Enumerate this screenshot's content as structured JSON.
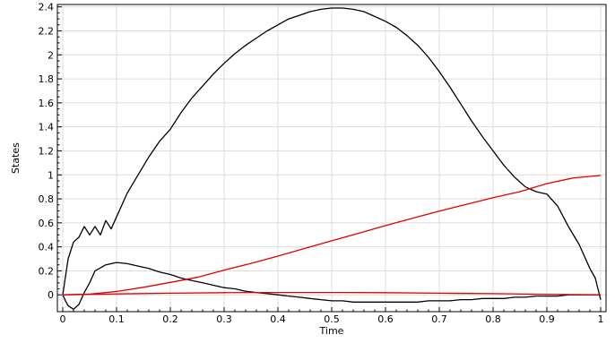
{
  "chart_data": {
    "type": "line",
    "title": "",
    "xlabel": "Time",
    "ylabel": "States",
    "xlim": [
      -0.01,
      1.01
    ],
    "ylim": [
      -0.14,
      2.42
    ],
    "xticks": [
      0,
      0.1,
      0.2,
      0.3,
      0.4,
      0.5,
      0.6,
      0.7,
      0.8,
      0.9,
      1
    ],
    "xtick_labels": [
      "0",
      "0.1",
      "0.2",
      "0.3",
      "0.4",
      "0.5",
      "0.6",
      "0.7",
      "0.8",
      "0.9",
      "1"
    ],
    "yticks": [
      0,
      0.2,
      0.4,
      0.6,
      0.8,
      1,
      1.2,
      1.4,
      1.6,
      1.8,
      2,
      2.2,
      2.4
    ],
    "ytick_labels": [
      "0",
      "0.2",
      "0.4",
      "0.6",
      "0.8",
      "1",
      "1.2",
      "1.4",
      "1.6",
      "1.8",
      "2",
      "2.2",
      "2.4"
    ],
    "grid": true,
    "legend": "none",
    "series": [
      {
        "color": "#000000",
        "x": [
          0,
          0.01,
          0.02,
          0.03,
          0.04,
          0.05,
          0.06,
          0.07,
          0.08,
          0.09,
          0.1,
          0.12,
          0.14,
          0.16,
          0.18,
          0.2,
          0.22,
          0.24,
          0.26,
          0.28,
          0.3,
          0.32,
          0.34,
          0.36,
          0.38,
          0.4,
          0.42,
          0.44,
          0.46,
          0.48,
          0.5,
          0.52,
          0.54,
          0.56,
          0.58,
          0.6,
          0.62,
          0.64,
          0.66,
          0.68,
          0.7,
          0.72,
          0.74,
          0.76,
          0.78,
          0.8,
          0.82,
          0.84,
          0.86,
          0.88,
          0.9,
          0.92,
          0.94,
          0.96,
          0.98,
          0.99,
          1
        ],
        "y": [
          0,
          0.3,
          0.44,
          0.48,
          0.57,
          0.5,
          0.57,
          0.5,
          0.62,
          0.55,
          0.65,
          0.85,
          1.0,
          1.15,
          1.28,
          1.38,
          1.52,
          1.64,
          1.74,
          1.84,
          1.93,
          2.01,
          2.08,
          2.14,
          2.2,
          2.25,
          2.3,
          2.33,
          2.36,
          2.38,
          2.39,
          2.39,
          2.38,
          2.36,
          2.32,
          2.28,
          2.23,
          2.16,
          2.08,
          1.98,
          1.86,
          1.73,
          1.59,
          1.45,
          1.32,
          1.2,
          1.08,
          0.98,
          0.9,
          0.86,
          0.84,
          0.74,
          0.57,
          0.42,
          0.22,
          0.14,
          -0.04
        ]
      },
      {
        "color": "#000000",
        "x": [
          0,
          0.005,
          0.01,
          0.02,
          0.03,
          0.04,
          0.05,
          0.06,
          0.08,
          0.1,
          0.12,
          0.14,
          0.16,
          0.18,
          0.2,
          0.22,
          0.24,
          0.26,
          0.28,
          0.3,
          0.32,
          0.34,
          0.36,
          0.38,
          0.4,
          0.42,
          0.44,
          0.46,
          0.48,
          0.5,
          0.52,
          0.54,
          0.56,
          0.58,
          0.6,
          0.62,
          0.64,
          0.66,
          0.68,
          0.7,
          0.72,
          0.74,
          0.76,
          0.78,
          0.8,
          0.82,
          0.84,
          0.86,
          0.88,
          0.9,
          0.92,
          0.94,
          0.96,
          0.98,
          1
        ],
        "y": [
          0,
          -0.05,
          -0.09,
          -0.12,
          -0.08,
          0.02,
          0.1,
          0.2,
          0.25,
          0.27,
          0.26,
          0.24,
          0.22,
          0.19,
          0.17,
          0.14,
          0.12,
          0.1,
          0.08,
          0.06,
          0.05,
          0.03,
          0.02,
          0.01,
          0.0,
          -0.01,
          -0.02,
          -0.03,
          -0.04,
          -0.05,
          -0.05,
          -0.06,
          -0.06,
          -0.06,
          -0.06,
          -0.06,
          -0.06,
          -0.06,
          -0.05,
          -0.05,
          -0.05,
          -0.04,
          -0.04,
          -0.03,
          -0.03,
          -0.03,
          -0.02,
          -0.02,
          -0.01,
          -0.01,
          -0.01,
          0.0,
          0.0,
          0.0,
          0.0
        ]
      },
      {
        "color": "#e00000",
        "x": [
          0,
          0.05,
          0.1,
          0.15,
          0.2,
          0.25,
          0.3,
          0.35,
          0.4,
          0.45,
          0.5,
          0.55,
          0.6,
          0.65,
          0.7,
          0.75,
          0.8,
          0.85,
          0.9,
          0.95,
          1
        ],
        "y": [
          0,
          0.006,
          0.028,
          0.063,
          0.104,
          0.146,
          0.206,
          0.262,
          0.323,
          0.387,
          0.45,
          0.513,
          0.577,
          0.638,
          0.698,
          0.754,
          0.81,
          0.86,
          0.927,
          0.975,
          0.995
        ]
      },
      {
        "color": "#e00000",
        "x": [
          0,
          0.1,
          0.2,
          0.3,
          0.4,
          0.5,
          0.6,
          0.7,
          0.8,
          0.9,
          1
        ],
        "y": [
          0,
          0.008,
          0.014,
          0.018,
          0.02,
          0.02,
          0.018,
          0.014,
          0.01,
          0.005,
          0
        ]
      }
    ]
  }
}
